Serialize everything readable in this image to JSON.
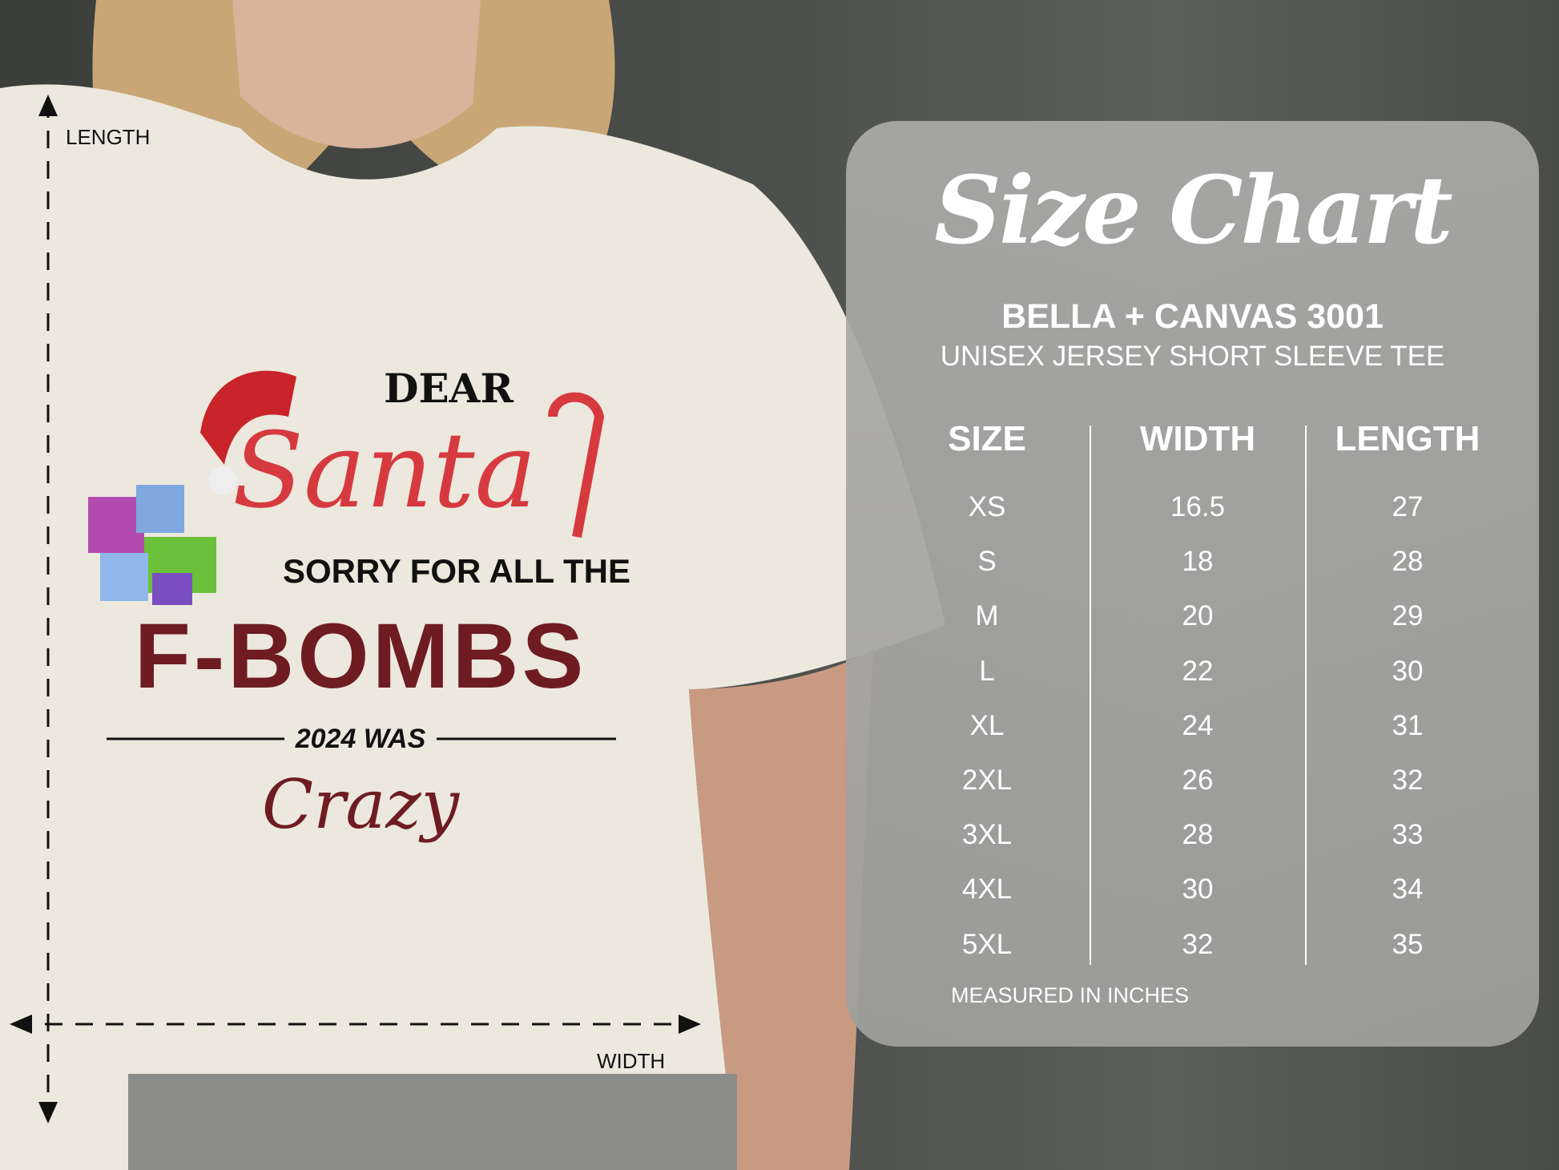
{
  "size_chart": {
    "title": "Size Chart",
    "brand": "BELLA + CANVAS 3001",
    "model": "UNISEX JERSEY SHORT SLEEVE TEE",
    "columns": [
      "SIZE",
      "WIDTH",
      "LENGTH"
    ],
    "rows": [
      [
        "XS",
        "16.5",
        "27"
      ],
      [
        "S",
        "18",
        "28"
      ],
      [
        "M",
        "20",
        "29"
      ],
      [
        "L",
        "22",
        "30"
      ],
      [
        "XL",
        "24",
        "31"
      ],
      [
        "2XL",
        "26",
        "32"
      ],
      [
        "3XL",
        "28",
        "33"
      ],
      [
        "4XL",
        "30",
        "34"
      ],
      [
        "5XL",
        "32",
        "35"
      ]
    ],
    "note": "MEASURED IN INCHES"
  },
  "dimensions": {
    "length_label": "LENGTH",
    "width_label": "WIDTH"
  },
  "shirt_design": {
    "line1": "DEAR",
    "line2": "Santa",
    "line3": "SORRY FOR ALL THE",
    "line4": "F-BOMBS",
    "line5": "2024 WAS",
    "line6": "Crazy"
  },
  "colors": {
    "shirt": "#ece8de",
    "santa_red": "#d63a3f",
    "bomb_maroon": "#6e1c22",
    "panel": "#a6a6a4"
  }
}
